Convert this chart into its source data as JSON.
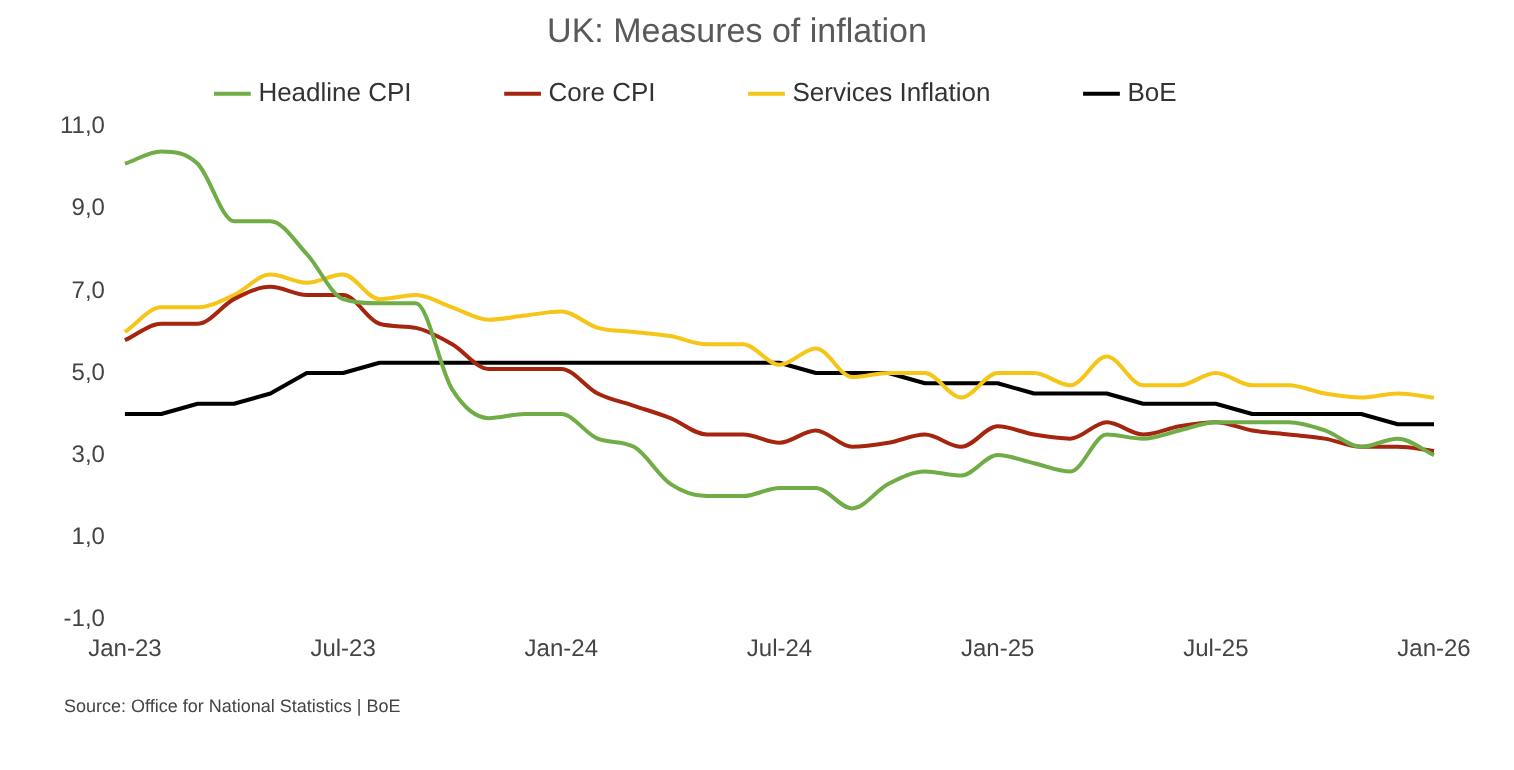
{
  "chart_data": {
    "type": "line",
    "title": "UK: Measures of inflation",
    "categories": [
      "Jan-23",
      null,
      null,
      null,
      null,
      null,
      "Jul-23",
      null,
      null,
      null,
      null,
      null,
      "Jan-24",
      null,
      null,
      null,
      null,
      null,
      "Jul-24",
      null,
      null,
      null,
      null,
      null,
      "Jan-25",
      null,
      null,
      null,
      null,
      null,
      "Jul-25",
      null,
      null,
      null,
      null,
      null,
      "Jan-26"
    ],
    "series": [
      {
        "name": "Headline CPI",
        "color": "#70ad47",
        "values": [
          10.1,
          10.4,
          10.1,
          8.7,
          8.7,
          7.9,
          6.8,
          6.7,
          6.7,
          4.6,
          3.9,
          4.0,
          4.0,
          3.4,
          3.2,
          2.3,
          2.0,
          2.0,
          2.2,
          2.2,
          1.7,
          2.3,
          2.6,
          2.5,
          3.0,
          2.8,
          2.6,
          3.5,
          3.4,
          3.6,
          3.8,
          3.8,
          3.8,
          3.6,
          3.2,
          3.4,
          3.0
        ]
      },
      {
        "name": "Core CPI",
        "color": "#a5250f",
        "values": [
          5.8,
          6.2,
          6.2,
          6.8,
          7.1,
          6.9,
          6.9,
          6.2,
          6.1,
          5.7,
          5.1,
          5.1,
          5.1,
          4.5,
          4.2,
          3.9,
          3.5,
          3.5,
          3.3,
          3.6,
          3.2,
          3.3,
          3.5,
          3.2,
          3.7,
          3.5,
          3.4,
          3.8,
          3.5,
          3.7,
          3.8,
          3.6,
          3.5,
          3.4,
          3.2,
          3.2,
          3.1
        ]
      },
      {
        "name": "Services Inflation",
        "color": "#f5c518",
        "values": [
          6.0,
          6.6,
          6.6,
          6.9,
          7.4,
          7.2,
          7.4,
          6.8,
          6.9,
          6.6,
          6.3,
          6.4,
          6.5,
          6.1,
          6.0,
          5.9,
          5.7,
          5.7,
          5.2,
          5.6,
          4.9,
          5.0,
          5.0,
          4.4,
          5.0,
          5.0,
          4.7,
          5.4,
          4.7,
          4.7,
          5.0,
          4.7,
          4.7,
          4.5,
          4.4,
          4.5,
          4.4
        ]
      },
      {
        "name": "BoE",
        "color": "#000000",
        "type": "step",
        "values": [
          4.0,
          4.0,
          4.25,
          4.25,
          4.5,
          5.0,
          5.0,
          5.25,
          5.25,
          5.25,
          5.25,
          5.25,
          5.25,
          5.25,
          5.25,
          5.25,
          5.25,
          5.25,
          5.25,
          5.0,
          5.0,
          5.0,
          4.75,
          4.75,
          4.75,
          4.5,
          4.5,
          4.5,
          4.25,
          4.25,
          4.25,
          4.0,
          4.0,
          4.0,
          4.0,
          3.75,
          3.75
        ]
      }
    ],
    "ylim": [
      -1,
      11
    ],
    "yticks": [
      {
        "value": -1,
        "label": "-1,0"
      },
      {
        "value": 1,
        "label": "1,0"
      },
      {
        "value": 3,
        "label": "3,0"
      },
      {
        "value": 5,
        "label": "5,0"
      },
      {
        "value": 7,
        "label": "7,0"
      },
      {
        "value": 9,
        "label": "9,0"
      },
      {
        "value": 11,
        "label": "11,0"
      }
    ],
    "grid": false,
    "legend": "top",
    "marker": "none",
    "annotations": [
      "Source: Office for National Statistics | BoE"
    ]
  }
}
